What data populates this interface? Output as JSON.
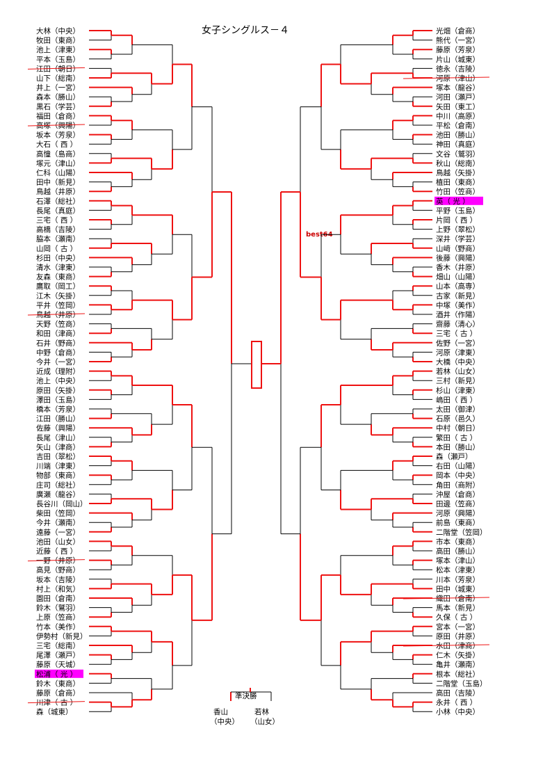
{
  "title": "女子シングルス－４",
  "best_label": "best64",
  "semifinal_label": "準決勝",
  "final_players": {
    "left": {
      "name": "香山",
      "school": "（中央）"
    },
    "right": {
      "name": "若林",
      "school": "（山女）"
    }
  },
  "left_players": [
    "大林（中央）",
    "牧田（東商）",
    "池上（津東）",
    "平本（玉島）",
    "江田（朝日）",
    "山下（総南）",
    "井上（一宮）",
    "森本（勝山）",
    "黒石（学芸）",
    "福田（倉商）",
    "高塚（興陽）",
    "坂本（芳泉）",
    "大石（ 西 ）",
    "高憧（島商）",
    "塚元（津山）",
    "仁科（山陽）",
    "田中（新見）",
    "鳥越（井原）",
    "石澤（総社）",
    "長尾（真庭）",
    "三宅（ 西 ）",
    "高橋（吉陵）",
    "脇本（瀬南）",
    "山岡（ 古 ）",
    "杉田（中央）",
    "清水（津東）",
    "友森（東商）",
    "鷹取（岡工）",
    "江木（矢掛）",
    "平井（笠岡）",
    "鳥越（井原）",
    "天野（笠商）",
    "和田（津商）",
    "石井（野商）",
    "中野（倉商）",
    "今井（一宮）",
    "近成（理附）",
    "池上（中央）",
    "原田（矢掛）",
    "澤田（玉島）",
    "橋本（芳泉）",
    "江田（勝山）",
    "佐藤（興陽）",
    "長尾（津山）",
    "矢山（津商）",
    "吉田（翠松）",
    "川端（津東）",
    "物部（東商）",
    "庄司（総社）",
    "廣瀬（龍谷）",
    "長谷川（岡山）",
    "柴田（笠岡）",
    "今井（瀬南）",
    "遠藤（一宮）",
    "池田（山女）",
    "近藤（ 西 ）",
    "一野（井原）",
    "高見（野商）",
    "坂本（吉陵）",
    "村上（和気）",
    "園田（倉南）",
    "鈴木（鷲羽）",
    "上原（笠商）",
    "竹本（美作）",
    "伊勢村（新見）",
    "三宅（総南）",
    "尾澤（瀬戸）",
    "藤原（天城）",
    "松浦（ 光 ）",
    "鈴木（東商）",
    "藤原（倉商）",
    "川津（ 古 ）",
    "森（城東）"
  ],
  "right_players": [
    "光畑（倉商）",
    "熊代（一宮）",
    "藤原（芳泉）",
    "片山（城東）",
    "徳永（吉陵）",
    "河原（津山）",
    "塚本（龍谷）",
    "河田（瀬戸）",
    "矢田（東工）",
    "中川（高原）",
    "平松（倉南）",
    "池田（勝山）",
    "神田（真庭）",
    "文谷（鷲羽）",
    "秋山（総南）",
    "鳥越（矢掛）",
    "植田（東商）",
    "竹田（笠商）",
    "英（ 光 ）",
    "平野（玉島）",
    "片岡（ 西 ）",
    "上野（翠松）",
    "深井（学芸）",
    "山﨑（野商）",
    "後藤（興陽）",
    "香木（井原）",
    "畑山（山陽）",
    "山本（高専）",
    "古家（新見）",
    "中塚（美作）",
    "酒井（作陽）",
    "齋藤（清心）",
    "三宅（ 古 ）",
    "佐野（一宮）",
    "河原（津東）",
    "大橋（中央）",
    "若林（山女）",
    "三村（新見）",
    "杉山（津東）",
    "嶋田（ 西 ）",
    "太田（御津）",
    "石原（邑久）",
    "中村（朝日）",
    "繁田（ 古 ）",
    "本田（勝山）",
    "森（瀬戸）",
    "右田（山陽）",
    "岡本（中央）",
    "角田（商附）",
    "沖屋（倉商）",
    "田邊（笠商）",
    "河原（興陽）",
    "前島（東商）",
    "二階堂（笠岡）",
    "市本（東商）",
    "高田（勝山）",
    "塚本（津山）",
    "松本（津東）",
    "川本（芳泉）",
    "田中（城東）",
    "織田（倉南）",
    "馬本（新見）",
    "久保（ 古 ）",
    "宮本（一宮）",
    "原田（井原）",
    "水田（津商）",
    "仁木（矢掛）",
    "亀井（瀬南）",
    "根本（総社）",
    "二階堂（玉島）",
    "高田（吉陵）",
    "永井（ 西 ）",
    "小林（中央）"
  ],
  "highlighted": {
    "left": [
      68
    ],
    "right": [
      18
    ]
  },
  "struck": {
    "left": [
      4,
      10,
      30,
      56,
      71
    ],
    "right": [
      5,
      60,
      65
    ]
  },
  "colors": {
    "win_line": "#ee1111",
    "base_line": "#000000",
    "highlight": "#ff00ff",
    "highlight_text": "#ffffff",
    "strike": "#ee1111"
  }
}
